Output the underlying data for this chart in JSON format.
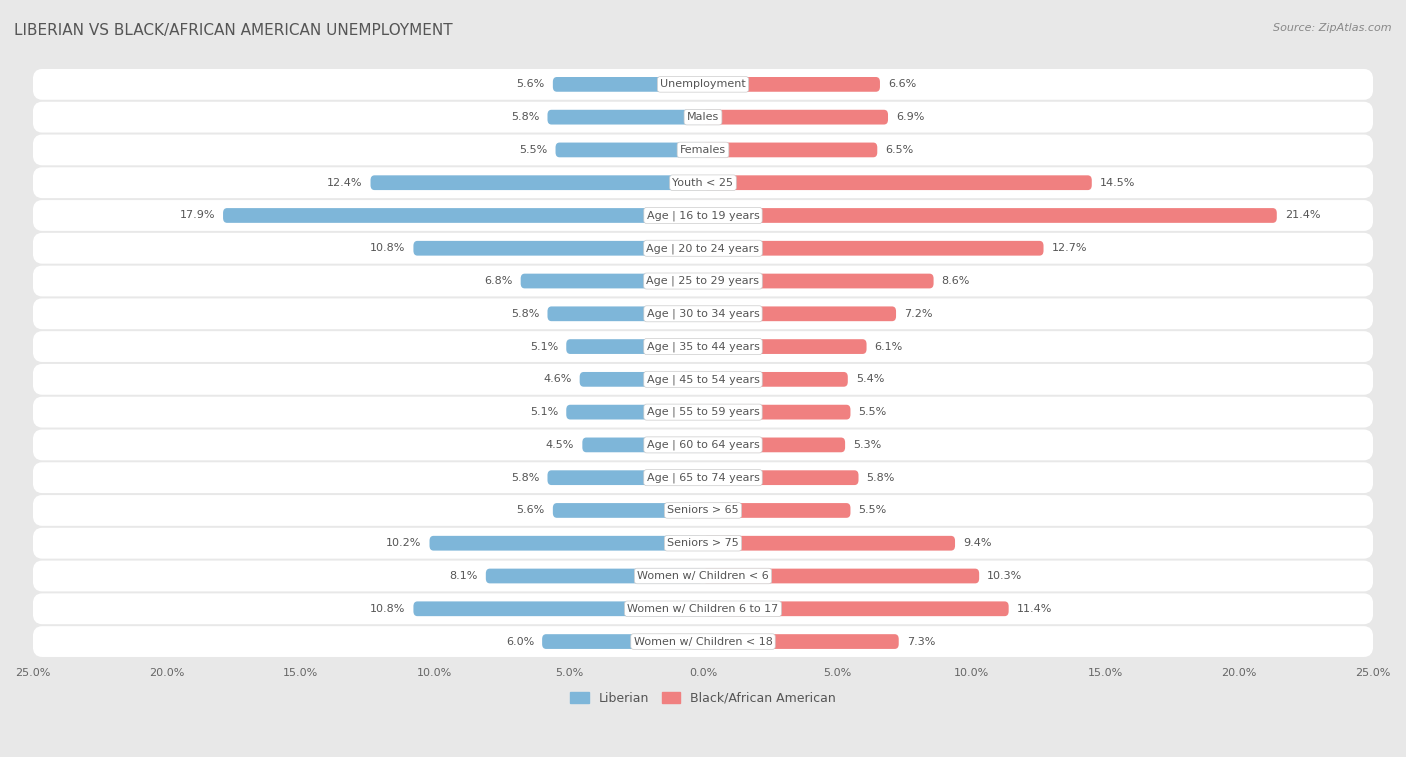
{
  "title": "LIBERIAN VS BLACK/AFRICAN AMERICAN UNEMPLOYMENT",
  "source": "Source: ZipAtlas.com",
  "categories": [
    "Unemployment",
    "Males",
    "Females",
    "Youth < 25",
    "Age | 16 to 19 years",
    "Age | 20 to 24 years",
    "Age | 25 to 29 years",
    "Age | 30 to 34 years",
    "Age | 35 to 44 years",
    "Age | 45 to 54 years",
    "Age | 55 to 59 years",
    "Age | 60 to 64 years",
    "Age | 65 to 74 years",
    "Seniors > 65",
    "Seniors > 75",
    "Women w/ Children < 6",
    "Women w/ Children 6 to 17",
    "Women w/ Children < 18"
  ],
  "liberian": [
    5.6,
    5.8,
    5.5,
    12.4,
    17.9,
    10.8,
    6.8,
    5.8,
    5.1,
    4.6,
    5.1,
    4.5,
    5.8,
    5.6,
    10.2,
    8.1,
    10.8,
    6.0
  ],
  "black": [
    6.6,
    6.9,
    6.5,
    14.5,
    21.4,
    12.7,
    8.6,
    7.2,
    6.1,
    5.4,
    5.5,
    5.3,
    5.8,
    5.5,
    9.4,
    10.3,
    11.4,
    7.3
  ],
  "liberian_color": "#7EB6D9",
  "black_color": "#F08080",
  "liberian_label": "Liberian",
  "black_label": "Black/African American",
  "xlim": 25.0,
  "background_color": "#e8e8e8",
  "row_bg_color": "#ffffff",
  "title_color": "#555555",
  "source_color": "#888888",
  "label_color": "#555555",
  "value_color": "#555555"
}
